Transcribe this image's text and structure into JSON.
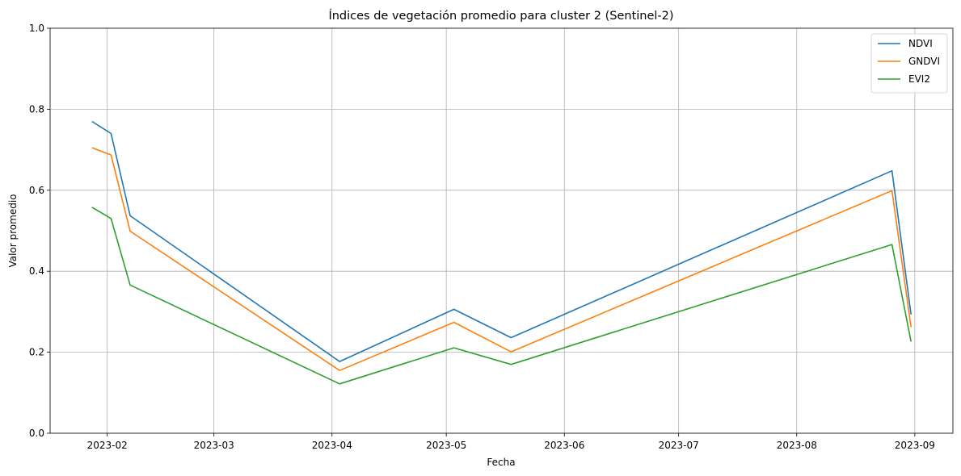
{
  "chart_data": {
    "type": "line",
    "title": "Índices de vegetación promedio para cluster 2 (Sentinel-2)",
    "xlabel": "Fecha",
    "ylabel": "Valor promedio",
    "ylim": [
      0,
      1
    ],
    "xlim": [
      "2023-01-17",
      "2023-09-11"
    ],
    "grid": true,
    "legend_position": "top-right",
    "y_ticks": [
      "0.0",
      "0.2",
      "0.4",
      "0.6",
      "0.8",
      "1.0"
    ],
    "x_ticks": [
      "2023-02",
      "2023-03",
      "2023-04",
      "2023-05",
      "2023-06",
      "2023-07",
      "2023-08",
      "2023-09"
    ],
    "x": [
      "2023-01-28",
      "2023-02-02",
      "2023-02-07",
      "2023-04-03",
      "2023-05-03",
      "2023-05-18",
      "2023-08-26",
      "2023-08-31"
    ],
    "series": [
      {
        "name": "NDVI",
        "color": "#1f77b4",
        "values": [
          0.77,
          0.74,
          0.537,
          0.177,
          0.306,
          0.236,
          0.648,
          0.293
        ]
      },
      {
        "name": "GNDVI",
        "color": "#ff7f0e",
        "values": [
          0.705,
          0.687,
          0.499,
          0.155,
          0.274,
          0.201,
          0.599,
          0.262
        ]
      },
      {
        "name": "EVI2",
        "color": "#2ca02c",
        "values": [
          0.558,
          0.53,
          0.366,
          0.122,
          0.211,
          0.17,
          0.466,
          0.226
        ]
      }
    ]
  }
}
